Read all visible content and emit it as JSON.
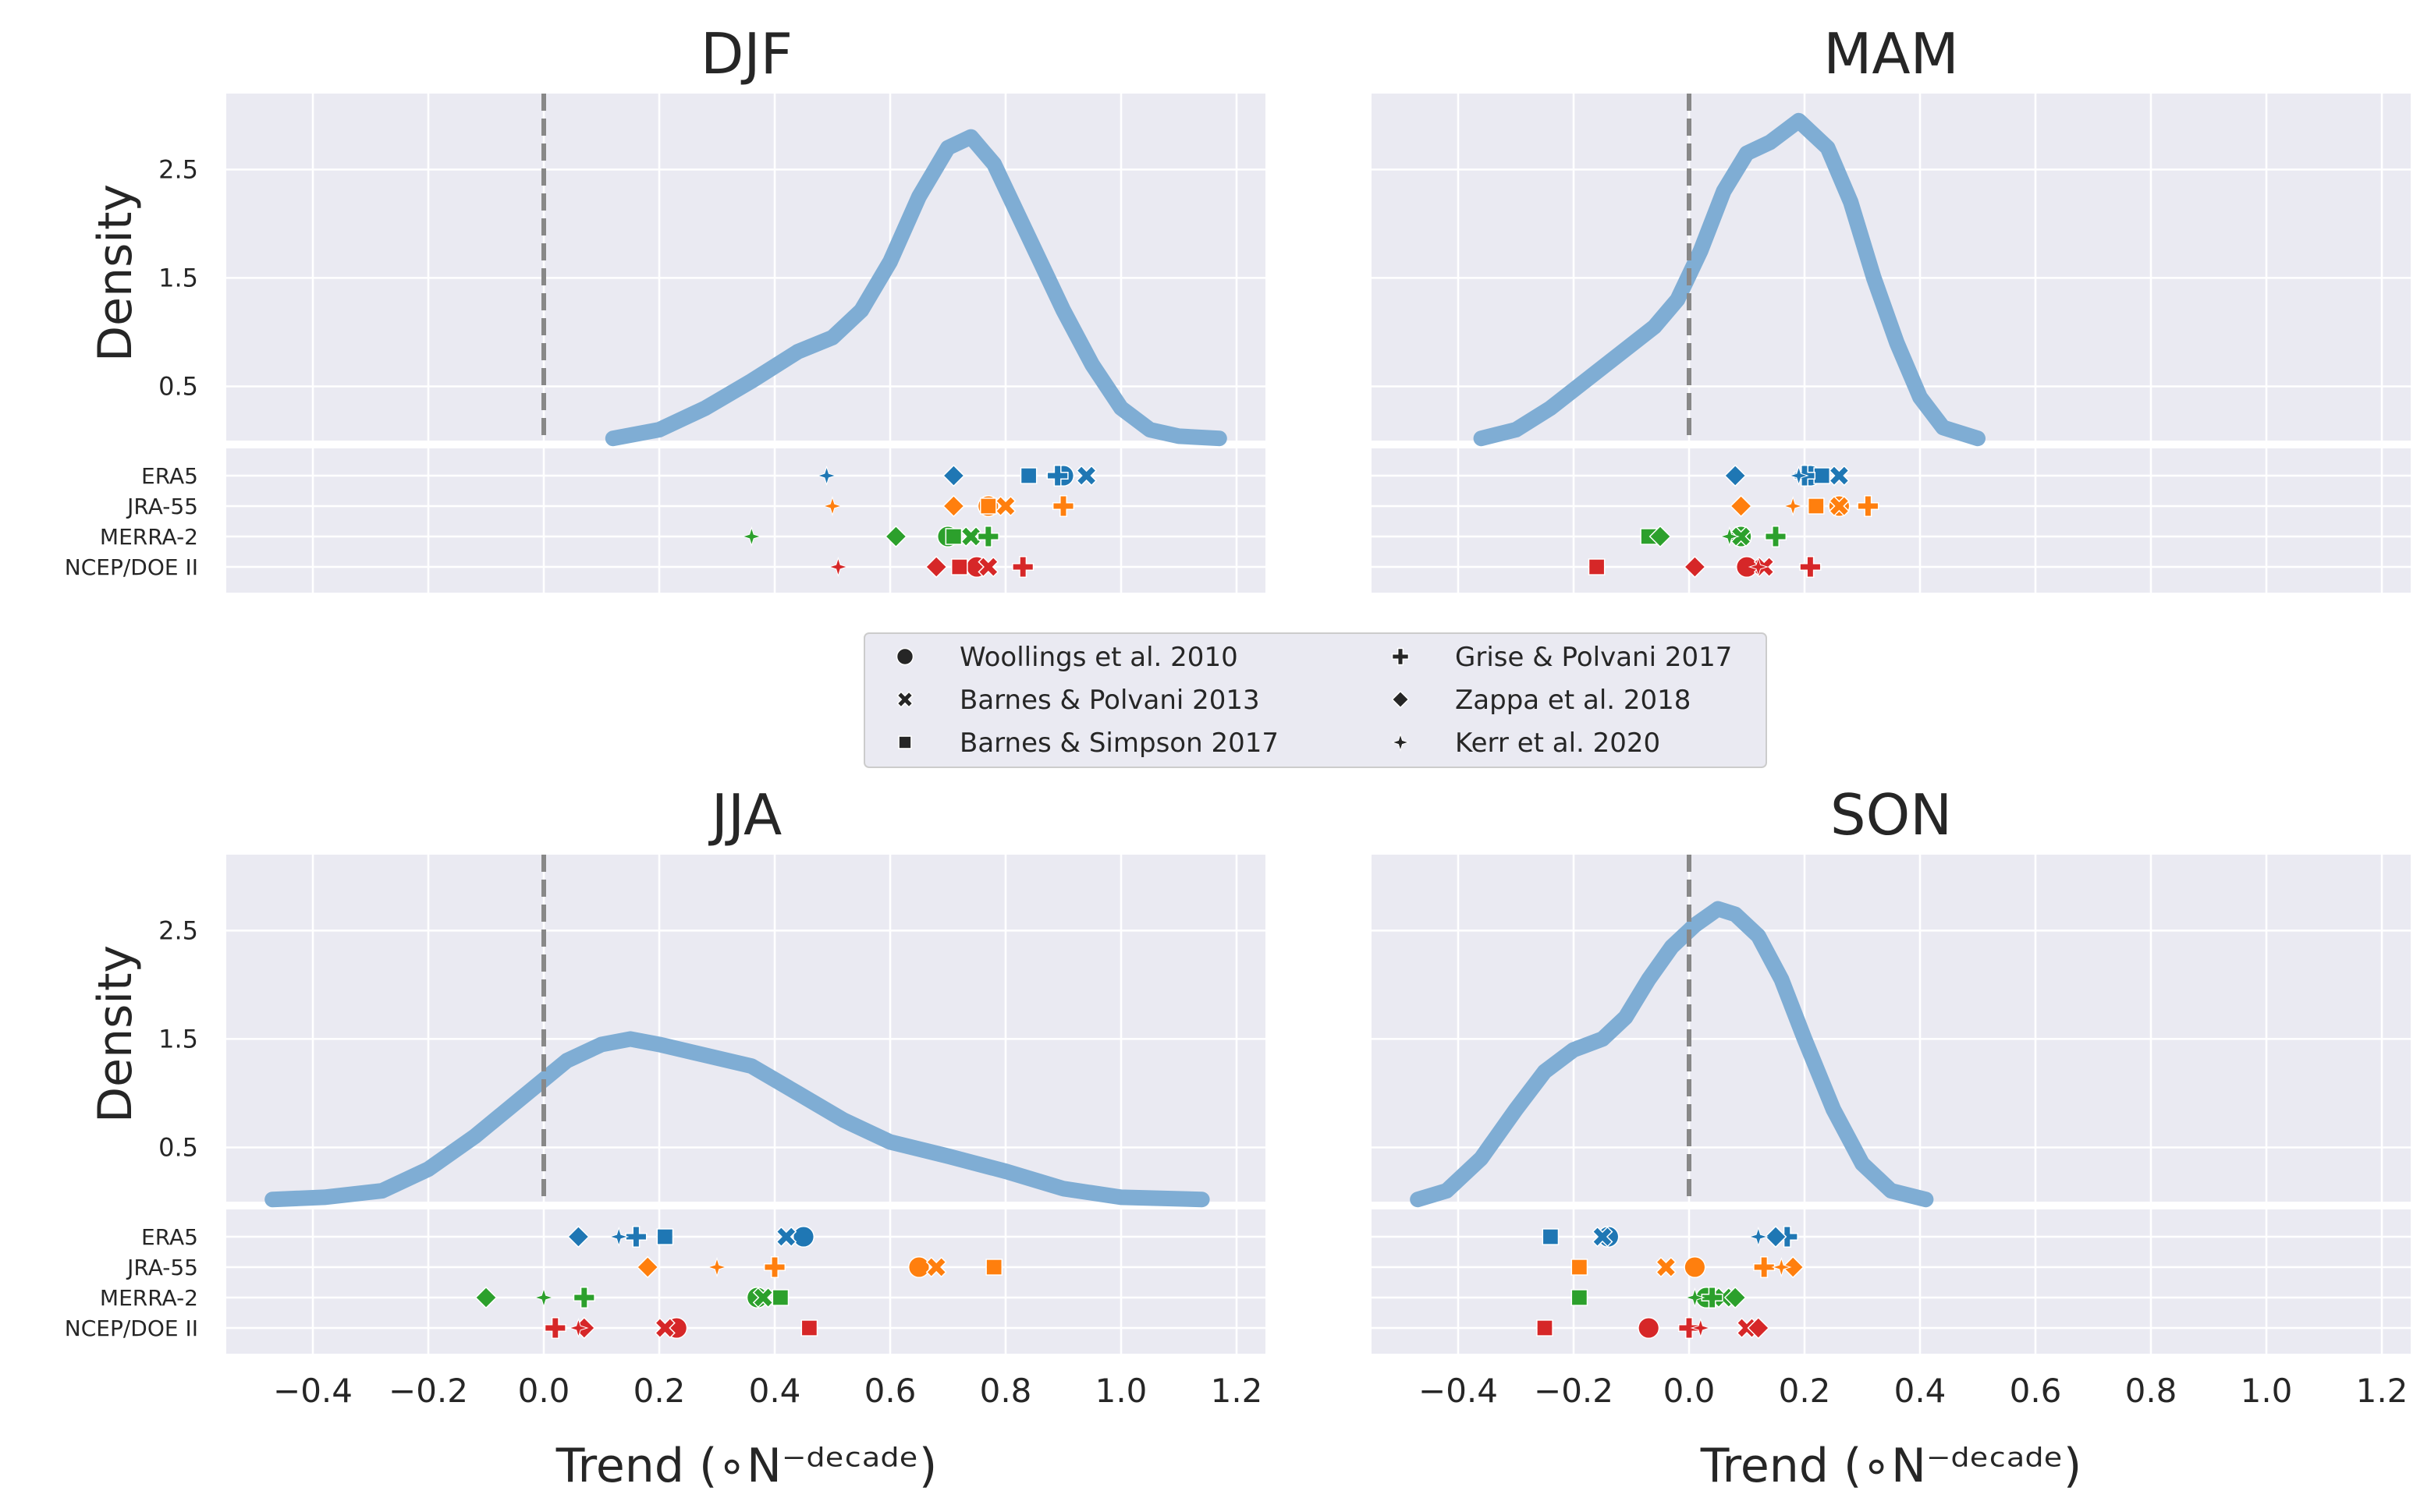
{
  "figure": {
    "legend": {
      "entries": [
        {
          "label": "Woollings et al. 2010",
          "marker": "circle"
        },
        {
          "label": "Barnes & Polvani 2013",
          "marker": "x"
        },
        {
          "label": "Barnes & Simpson 2017",
          "marker": "square"
        },
        {
          "label": "Grise & Polvani 2017",
          "marker": "plus"
        },
        {
          "label": "Zappa et al. 2018",
          "marker": "diamond"
        },
        {
          "label": "Kerr et al. 2020",
          "marker": "star"
        }
      ]
    },
    "datasets": [
      {
        "name": "ERA5",
        "color": "#1f77b4"
      },
      {
        "name": "JRA-55",
        "color": "#ff7f0e"
      },
      {
        "name": "MERRA-2",
        "color": "#2ca02c"
      },
      {
        "name": "NCEP/DOE II",
        "color": "#d62728"
      }
    ],
    "reference_line_x": 0.0
  },
  "chart_data": [
    {
      "type": "line",
      "title": "DJF",
      "ylabel": "Density",
      "xlabel": "Trend (∘N⁻ᵈᵉᶜᵃᵈᵉ)",
      "show_xaxis": false,
      "show_ylabel": true,
      "xlim": [
        -0.55,
        1.25
      ],
      "ylim": [
        0,
        3.2
      ],
      "xticks": [
        -0.4,
        -0.2,
        0.0,
        0.2,
        0.4,
        0.6,
        0.8,
        1.0,
        1.2
      ],
      "xtick_labels": [
        "−0.4",
        "−0.2",
        "0.0",
        "0.2",
        "0.4",
        "0.6",
        "0.8",
        "1.0",
        "1.2"
      ],
      "yticks": [
        0.5,
        1.5,
        2.5
      ],
      "ytick_labels": [
        "0.5",
        "1.5",
        "2.5"
      ],
      "kde": {
        "name": "density",
        "color": "#7fadd4",
        "x": [
          0.12,
          0.2,
          0.28,
          0.36,
          0.44,
          0.5,
          0.55,
          0.6,
          0.65,
          0.7,
          0.74,
          0.78,
          0.82,
          0.86,
          0.9,
          0.95,
          1.0,
          1.05,
          1.1,
          1.17
        ],
        "y": [
          0.02,
          0.1,
          0.3,
          0.55,
          0.82,
          0.95,
          1.2,
          1.65,
          2.25,
          2.7,
          2.8,
          2.55,
          2.1,
          1.65,
          1.2,
          0.7,
          0.3,
          0.1,
          0.04,
          0.02
        ]
      },
      "points": [
        {
          "dataset": "ERA5",
          "values": {
            "circle": 0.9,
            "x": 0.94,
            "square": 0.84,
            "plus": 0.89,
            "diamond": 0.71,
            "star": 0.49
          }
        },
        {
          "dataset": "JRA-55",
          "values": {
            "circle": 0.77,
            "x": 0.8,
            "square": 0.77,
            "plus": 0.9,
            "diamond": 0.71,
            "star": 0.5
          }
        },
        {
          "dataset": "MERRA-2",
          "values": {
            "circle": 0.7,
            "x": 0.74,
            "square": 0.71,
            "plus": 0.77,
            "diamond": 0.61,
            "star": 0.36
          }
        },
        {
          "dataset": "NCEP/DOE II",
          "values": {
            "circle": 0.75,
            "x": 0.77,
            "square": 0.72,
            "plus": 0.83,
            "diamond": 0.68,
            "star": 0.51
          }
        }
      ]
    },
    {
      "type": "line",
      "title": "MAM",
      "ylabel": "Density",
      "xlabel": "Trend (∘N⁻ᵈᵉᶜᵃᵈᵉ)",
      "show_xaxis": false,
      "show_ylabel": false,
      "xlim": [
        -0.55,
        1.25
      ],
      "ylim": [
        0,
        3.2
      ],
      "xticks": [
        -0.4,
        -0.2,
        0.0,
        0.2,
        0.4,
        0.6,
        0.8,
        1.0,
        1.2
      ],
      "xtick_labels": [
        "−0.4",
        "−0.2",
        "0.0",
        "0.2",
        "0.4",
        "0.6",
        "0.8",
        "1.0",
        "1.2"
      ],
      "yticks": [
        0.5,
        1.5,
        2.5
      ],
      "ytick_labels": [
        "0.5",
        "1.5",
        "2.5"
      ],
      "kde": {
        "name": "density",
        "color": "#7fadd4",
        "x": [
          -0.36,
          -0.3,
          -0.24,
          -0.18,
          -0.12,
          -0.06,
          -0.02,
          0.02,
          0.06,
          0.1,
          0.14,
          0.19,
          0.24,
          0.28,
          0.32,
          0.36,
          0.4,
          0.44,
          0.5
        ],
        "y": [
          0.02,
          0.1,
          0.3,
          0.55,
          0.8,
          1.05,
          1.3,
          1.75,
          2.3,
          2.65,
          2.75,
          2.95,
          2.7,
          2.2,
          1.5,
          0.9,
          0.4,
          0.12,
          0.02
        ]
      },
      "points": [
        {
          "dataset": "ERA5",
          "values": {
            "circle": 0.21,
            "x": 0.26,
            "square": 0.23,
            "plus": 0.2,
            "diamond": 0.08,
            "star": 0.19
          }
        },
        {
          "dataset": "JRA-55",
          "values": {
            "circle": 0.26,
            "x": 0.26,
            "square": 0.22,
            "plus": 0.31,
            "diamond": 0.09,
            "star": 0.18
          }
        },
        {
          "dataset": "MERRA-2",
          "values": {
            "circle": 0.09,
            "x": 0.09,
            "square": -0.07,
            "plus": 0.15,
            "diamond": -0.05,
            "star": 0.07
          }
        },
        {
          "dataset": "NCEP/DOE II",
          "values": {
            "circle": 0.1,
            "x": 0.13,
            "square": -0.16,
            "plus": 0.21,
            "diamond": 0.01,
            "star": 0.12
          }
        }
      ]
    },
    {
      "type": "line",
      "title": "JJA",
      "ylabel": "Density",
      "xlabel": "Trend (∘N⁻ᵈᵉᶜᵃᵈᵉ)",
      "show_xaxis": true,
      "show_ylabel": true,
      "xlim": [
        -0.55,
        1.25
      ],
      "ylim": [
        0,
        3.2
      ],
      "xticks": [
        -0.4,
        -0.2,
        0.0,
        0.2,
        0.4,
        0.6,
        0.8,
        1.0,
        1.2
      ],
      "xtick_labels": [
        "−0.4",
        "−0.2",
        "0.0",
        "0.2",
        "0.4",
        "0.6",
        "0.8",
        "1.0",
        "1.2"
      ],
      "yticks": [
        0.5,
        1.5,
        2.5
      ],
      "ytick_labels": [
        "0.5",
        "1.5",
        "2.5"
      ],
      "kde": {
        "name": "density",
        "color": "#7fadd4",
        "x": [
          -0.47,
          -0.38,
          -0.28,
          -0.2,
          -0.12,
          -0.04,
          0.04,
          0.1,
          0.15,
          0.2,
          0.28,
          0.36,
          0.44,
          0.52,
          0.6,
          0.7,
          0.8,
          0.9,
          1.0,
          1.14
        ],
        "y": [
          0.02,
          0.04,
          0.1,
          0.3,
          0.6,
          0.95,
          1.3,
          1.45,
          1.5,
          1.45,
          1.35,
          1.25,
          1.0,
          0.75,
          0.55,
          0.42,
          0.28,
          0.12,
          0.04,
          0.02
        ]
      },
      "points": [
        {
          "dataset": "ERA5",
          "values": {
            "circle": 0.45,
            "x": 0.42,
            "square": 0.21,
            "plus": 0.16,
            "diamond": 0.06,
            "star": 0.13
          }
        },
        {
          "dataset": "JRA-55",
          "values": {
            "circle": 0.65,
            "x": 0.68,
            "square": 0.78,
            "plus": 0.4,
            "diamond": 0.18,
            "star": 0.3
          }
        },
        {
          "dataset": "MERRA-2",
          "values": {
            "circle": 0.37,
            "x": 0.38,
            "square": 0.41,
            "plus": 0.07,
            "diamond": -0.1,
            "star": 0.0
          }
        },
        {
          "dataset": "NCEP/DOE II",
          "values": {
            "circle": 0.23,
            "x": 0.21,
            "square": 0.46,
            "plus": 0.02,
            "diamond": 0.07,
            "star": 0.06
          }
        }
      ]
    },
    {
      "type": "line",
      "title": "SON",
      "ylabel": "Density",
      "xlabel": "Trend (∘N⁻ᵈᵉᶜᵃᵈᵉ)",
      "show_xaxis": true,
      "show_ylabel": false,
      "xlim": [
        -0.55,
        1.25
      ],
      "ylim": [
        0,
        3.2
      ],
      "xticks": [
        -0.4,
        -0.2,
        0.0,
        0.2,
        0.4,
        0.6,
        0.8,
        1.0,
        1.2
      ],
      "xtick_labels": [
        "−0.4",
        "−0.2",
        "0.0",
        "0.2",
        "0.4",
        "0.6",
        "0.8",
        "1.0",
        "1.2"
      ],
      "yticks": [
        0.5,
        1.5,
        2.5
      ],
      "ytick_labels": [
        "0.5",
        "1.5",
        "2.5"
      ],
      "kde": {
        "name": "density",
        "color": "#7fadd4",
        "x": [
          -0.47,
          -0.42,
          -0.36,
          -0.3,
          -0.25,
          -0.2,
          -0.15,
          -0.11,
          -0.07,
          -0.03,
          0.01,
          0.05,
          0.08,
          0.12,
          0.16,
          0.2,
          0.25,
          0.3,
          0.35,
          0.41
        ],
        "y": [
          0.02,
          0.1,
          0.4,
          0.85,
          1.2,
          1.4,
          1.5,
          1.7,
          2.05,
          2.35,
          2.55,
          2.7,
          2.65,
          2.45,
          2.05,
          1.5,
          0.85,
          0.35,
          0.1,
          0.02
        ]
      },
      "points": [
        {
          "dataset": "ERA5",
          "values": {
            "circle": -0.14,
            "x": -0.15,
            "square": -0.24,
            "plus": 0.17,
            "diamond": 0.15,
            "star": 0.12
          }
        },
        {
          "dataset": "JRA-55",
          "values": {
            "circle": 0.01,
            "x": -0.04,
            "square": -0.19,
            "plus": 0.13,
            "diamond": 0.18,
            "star": 0.16
          }
        },
        {
          "dataset": "MERRA-2",
          "values": {
            "circle": 0.03,
            "x": 0.06,
            "square": -0.19,
            "plus": 0.04,
            "diamond": 0.08,
            "star": 0.01
          }
        },
        {
          "dataset": "NCEP/DOE II",
          "values": {
            "circle": -0.07,
            "x": 0.1,
            "square": -0.25,
            "plus": 0.0,
            "diamond": 0.12,
            "star": 0.02
          }
        }
      ]
    }
  ]
}
